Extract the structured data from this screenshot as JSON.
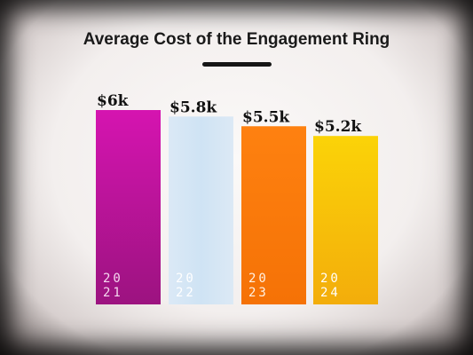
{
  "chart_data": {
    "type": "bar",
    "title": "Average Cost of the Engagement Ring",
    "categories": [
      {
        "line1": "20",
        "line2": "21"
      },
      {
        "line1": "20",
        "line2": "22"
      },
      {
        "line1": "20",
        "line2": "23"
      },
      {
        "line1": "20",
        "line2": "24"
      }
    ],
    "values": [
      6.0,
      5.8,
      5.5,
      5.2
    ],
    "value_labels": [
      "$6k",
      "$5.8k",
      "$5.5k",
      "$5.2k"
    ],
    "colors": [
      "#c8109e",
      "#d4e6f4",
      "#fb7d0c",
      "#f8be09"
    ],
    "ylim": [
      0,
      6.0
    ],
    "grid": false,
    "legend": "none"
  }
}
